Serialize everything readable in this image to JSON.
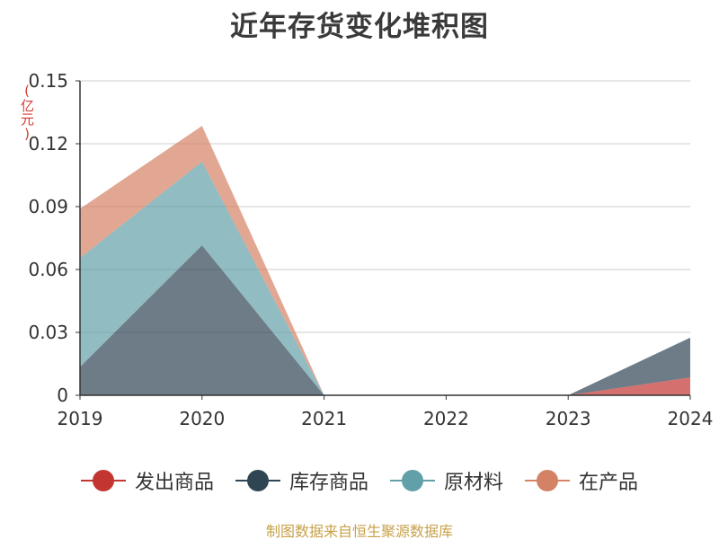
{
  "chart_data": {
    "type": "area",
    "title": "近年存货变化堆积图",
    "ylabel": "(亿元)",
    "xlabel": "",
    "stacked": true,
    "categories": [
      "2019",
      "2020",
      "2021",
      "2022",
      "2023",
      "2024"
    ],
    "ylim": [
      0,
      0.15
    ],
    "yticks": [
      0,
      0.03,
      0.06,
      0.09,
      0.12,
      0.15
    ],
    "ytick_labels": [
      "0",
      "0.03",
      "0.06",
      "0.09",
      "0.12",
      "0.15"
    ],
    "grid": true,
    "legend_position": "bottom",
    "series": [
      {
        "name": "发出商品",
        "color": "#c23531",
        "values": [
          0,
          0,
          0,
          0,
          0,
          0.0085
        ]
      },
      {
        "name": "库存商品",
        "color": "#2f4554",
        "values": [
          0.0135,
          0.0715,
          0,
          0,
          0,
          0.019
        ]
      },
      {
        "name": "原材料",
        "color": "#61a0a8",
        "values": [
          0.052,
          0.04,
          0,
          0,
          0,
          0
        ]
      },
      {
        "name": "在产品",
        "color": "#d48265",
        "values": [
          0.0235,
          0.017,
          0,
          0,
          0,
          0
        ]
      }
    ],
    "source": "制图数据来自恒生聚源数据库"
  }
}
